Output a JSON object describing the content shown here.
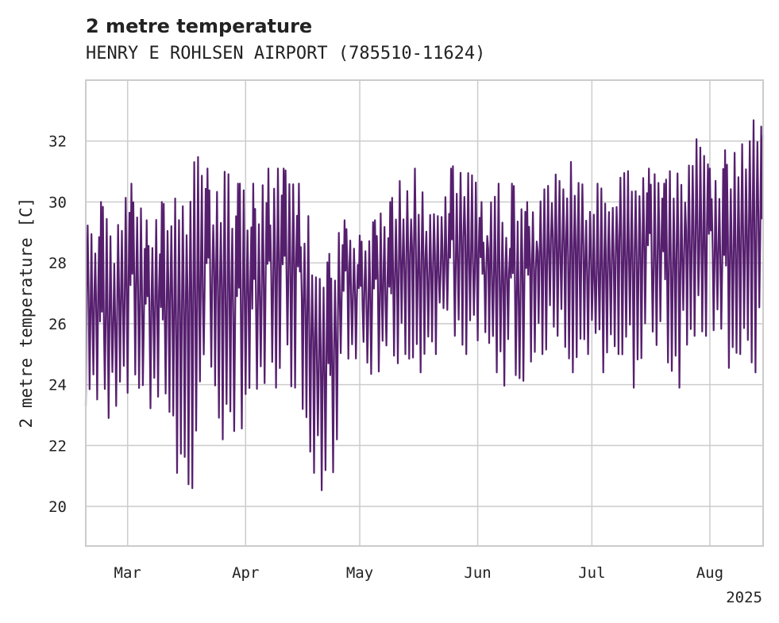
{
  "chart_data": {
    "type": "line",
    "title": "2 metre temperature",
    "subtitle": "HENRY E ROHLSEN AIRPORT (785510-11624)",
    "ylabel": "2 metre temperature [C]",
    "xlabel": "",
    "year_label": "2025",
    "x_range": [
      "2025-02-18",
      "2025-08-15"
    ],
    "ylim": [
      18.7,
      34.0
    ],
    "y_ticks": [
      20,
      22,
      24,
      26,
      28,
      30,
      32
    ],
    "x_ticks": [
      {
        "date": "2025-03-01",
        "label": "Mar"
      },
      {
        "date": "2025-04-01",
        "label": "Apr"
      },
      {
        "date": "2025-05-01",
        "label": "May"
      },
      {
        "date": "2025-06-01",
        "label": "Jun"
      },
      {
        "date": "2025-07-01",
        "label": "Jul"
      },
      {
        "date": "2025-08-01",
        "label": "Aug"
      }
    ],
    "grid": true,
    "series": [
      {
        "color": "#561f6e",
        "x": [
          "2025-02-18",
          "2025-02-22",
          "2025-02-26",
          "2025-03-02",
          "2025-03-06",
          "2025-03-10",
          "2025-03-14",
          "2025-03-18",
          "2025-03-22",
          "2025-03-26",
          "2025-03-30",
          "2025-04-03",
          "2025-04-07",
          "2025-04-11",
          "2025-04-15",
          "2025-04-19",
          "2025-04-23",
          "2025-04-27",
          "2025-05-01",
          "2025-05-05",
          "2025-05-09",
          "2025-05-13",
          "2025-05-17",
          "2025-05-21",
          "2025-05-25",
          "2025-05-29",
          "2025-06-02",
          "2025-06-06",
          "2025-06-10",
          "2025-06-14",
          "2025-06-18",
          "2025-06-22",
          "2025-06-26",
          "2025-06-30",
          "2025-07-04",
          "2025-07-08",
          "2025-07-12",
          "2025-07-16",
          "2025-07-20",
          "2025-07-24",
          "2025-07-28",
          "2025-08-01",
          "2025-08-05",
          "2025-08-09",
          "2025-08-13",
          "2025-08-15"
        ],
        "daily_max": [
          29.4,
          30.0,
          29.4,
          30.6,
          29.4,
          30.0,
          30.6,
          31.7,
          31.1,
          31.1,
          30.6,
          30.6,
          31.1,
          31.1,
          30.6,
          28.9,
          28.3,
          29.4,
          28.9,
          29.4,
          30.0,
          31.1,
          31.1,
          30.0,
          31.1,
          31.7,
          30.0,
          30.6,
          30.6,
          30.0,
          30.6,
          31.1,
          31.7,
          30.6,
          30.6,
          31.1,
          31.7,
          31.1,
          30.6,
          31.7,
          32.2,
          31.1,
          31.7,
          31.7,
          33.3,
          32.2
        ],
        "daily_min": [
          23.3,
          22.2,
          23.3,
          23.3,
          22.8,
          22.8,
          21.1,
          20.6,
          23.9,
          22.2,
          22.2,
          22.8,
          23.9,
          23.9,
          23.9,
          21.1,
          19.4,
          25.0,
          24.4,
          23.9,
          24.4,
          25.0,
          24.4,
          25.0,
          25.6,
          25.0,
          25.6,
          24.4,
          23.3,
          24.4,
          25.0,
          25.6,
          24.4,
          25.0,
          24.4,
          25.0,
          23.9,
          25.6,
          25.0,
          23.9,
          25.6,
          25.6,
          24.4,
          25.0,
          24.4,
          25.6
        ]
      }
    ]
  }
}
